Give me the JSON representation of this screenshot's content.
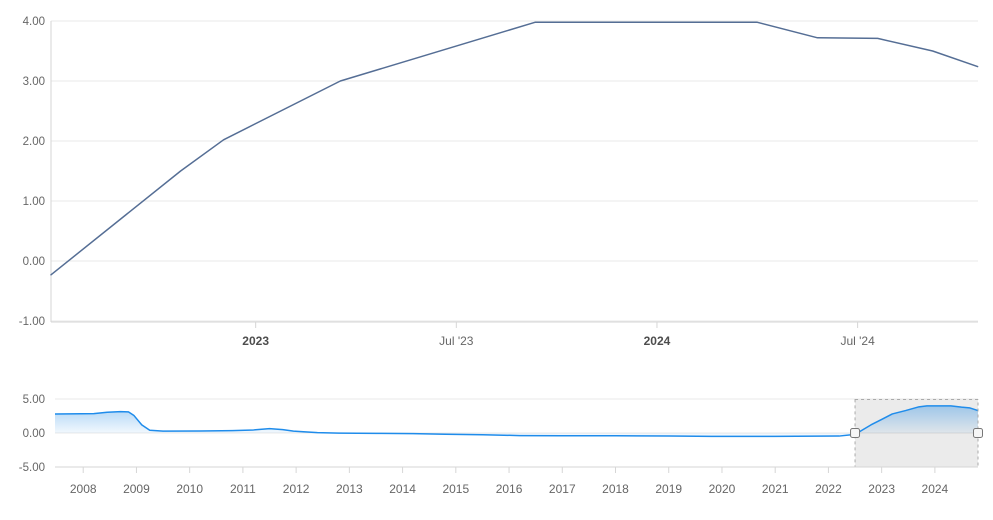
{
  "chart": {
    "colors": {
      "background": "#ffffff",
      "main_line": "#556e95",
      "nav_line": "#1f8ceb",
      "nav_fill_top": "rgba(30,136,229,0.45)",
      "nav_fill_bottom": "rgba(30,136,229,0.06)",
      "grid": "#e9e9e9",
      "axis": "#d6d6d6",
      "label": "#666666",
      "label_bold": "#4d4d4d",
      "selection_fill": "rgba(0,0,0,0.08)",
      "selection_border": "#aaaaaa",
      "handle_fill": "#f6f6f6",
      "handle_border": "#777777"
    }
  },
  "chart_data": [
    {
      "name": "main-rate-chart",
      "type": "line",
      "title": "",
      "xlabel": "",
      "ylabel": "",
      "x_unit": "decimal_year",
      "x_range": [
        2022.49,
        2024.8
      ],
      "ylim": [
        -1.0,
        4.0
      ],
      "grid": "horizontal",
      "legend": "none",
      "y_ticks": [
        {
          "value": 4,
          "label": "4.00"
        },
        {
          "value": 3,
          "label": "3.00"
        },
        {
          "value": 2,
          "label": "2.00"
        },
        {
          "value": 1,
          "label": "1.00"
        },
        {
          "value": 0,
          "label": "0.00"
        },
        {
          "value": -1,
          "label": "-1.00"
        }
      ],
      "x_ticks": [
        {
          "value": 2023.0,
          "label": "2023",
          "bold": true
        },
        {
          "value": 2023.5,
          "label": "Jul '23",
          "bold": false
        },
        {
          "value": 2024.0,
          "label": "2024",
          "bold": true
        },
        {
          "value": 2024.5,
          "label": "Jul '24",
          "bold": false
        }
      ],
      "points": [
        [
          2022.49,
          -0.23
        ],
        [
          2022.813,
          1.5
        ],
        [
          2022.92,
          2.02
        ],
        [
          2023.211,
          3.0
        ],
        [
          2023.697,
          3.98
        ],
        [
          2024.249,
          3.98
        ],
        [
          2024.4,
          3.72
        ],
        [
          2024.55,
          3.71
        ],
        [
          2024.687,
          3.5
        ],
        [
          2024.799,
          3.24
        ]
      ]
    },
    {
      "name": "navigator-chart",
      "type": "area",
      "title": "",
      "xlabel": "",
      "ylabel": "",
      "x_unit": "decimal_year",
      "x_range": [
        2007.47,
        2024.81
      ],
      "ylim": [
        -5.0,
        5.0
      ],
      "area_baseline": 0,
      "selected_range": [
        2022.5,
        2024.81
      ],
      "y_ticks": [
        {
          "value": 5,
          "label": "5.00"
        },
        {
          "value": 0,
          "label": "0.00"
        },
        {
          "value": -5,
          "label": "-5.00"
        }
      ],
      "x_ticks": [
        {
          "value": 2008,
          "label": "2008"
        },
        {
          "value": 2009,
          "label": "2009"
        },
        {
          "value": 2010,
          "label": "2010"
        },
        {
          "value": 2011,
          "label": "2011"
        },
        {
          "value": 2012,
          "label": "2012"
        },
        {
          "value": 2013,
          "label": "2013"
        },
        {
          "value": 2014,
          "label": "2014"
        },
        {
          "value": 2015,
          "label": "2015"
        },
        {
          "value": 2016,
          "label": "2016"
        },
        {
          "value": 2017,
          "label": "2017"
        },
        {
          "value": 2018,
          "label": "2018"
        },
        {
          "value": 2019,
          "label": "2019"
        },
        {
          "value": 2020,
          "label": "2020"
        },
        {
          "value": 2021,
          "label": "2021"
        },
        {
          "value": 2022,
          "label": "2022"
        },
        {
          "value": 2023,
          "label": "2023"
        },
        {
          "value": 2024,
          "label": "2024"
        }
      ],
      "points": [
        [
          2007.47,
          2.8
        ],
        [
          2008.2,
          2.85
        ],
        [
          2008.45,
          3.05
        ],
        [
          2008.7,
          3.15
        ],
        [
          2008.85,
          3.1
        ],
        [
          2008.95,
          2.6
        ],
        [
          2009.1,
          1.2
        ],
        [
          2009.25,
          0.4
        ],
        [
          2009.5,
          0.28
        ],
        [
          2010.2,
          0.3
        ],
        [
          2010.8,
          0.35
        ],
        [
          2011.2,
          0.45
        ],
        [
          2011.5,
          0.65
        ],
        [
          2011.75,
          0.5
        ],
        [
          2011.95,
          0.28
        ],
        [
          2012.4,
          0.05
        ],
        [
          2012.8,
          -0.02
        ],
        [
          2013.5,
          -0.05
        ],
        [
          2014.2,
          -0.1
        ],
        [
          2014.8,
          -0.18
        ],
        [
          2015.5,
          -0.25
        ],
        [
          2016.2,
          -0.38
        ],
        [
          2017.0,
          -0.4
        ],
        [
          2018.0,
          -0.4
        ],
        [
          2019.0,
          -0.44
        ],
        [
          2019.8,
          -0.5
        ],
        [
          2021.0,
          -0.5
        ],
        [
          2022.2,
          -0.45
        ],
        [
          2022.5,
          -0.2
        ],
        [
          2022.65,
          0.5
        ],
        [
          2022.8,
          1.2
        ],
        [
          2023.0,
          2.0
        ],
        [
          2023.2,
          2.8
        ],
        [
          2023.45,
          3.3
        ],
        [
          2023.7,
          3.85
        ],
        [
          2023.85,
          3.99
        ],
        [
          2024.3,
          3.99
        ],
        [
          2024.5,
          3.8
        ],
        [
          2024.65,
          3.7
        ],
        [
          2024.81,
          3.3
        ]
      ]
    }
  ]
}
